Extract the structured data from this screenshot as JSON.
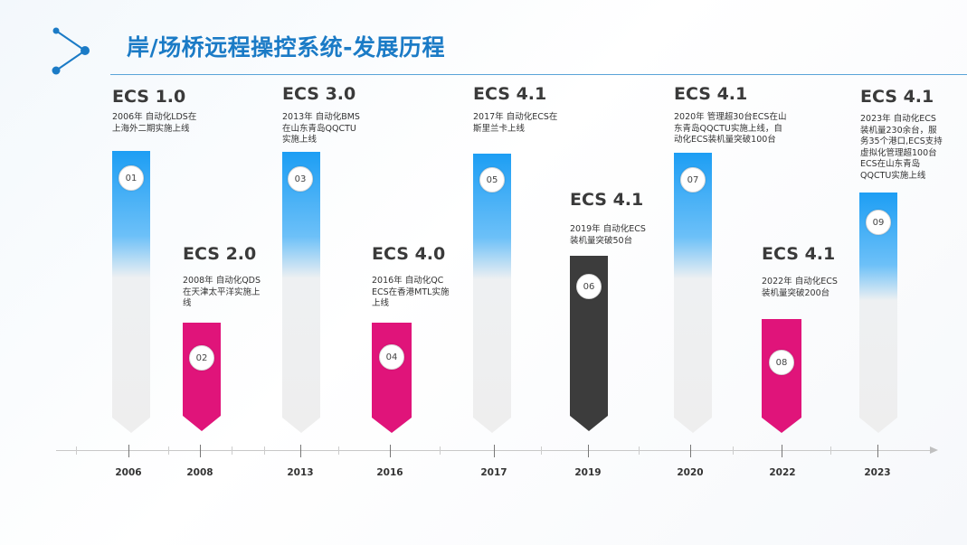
{
  "header": {
    "title": "岸/场桥远程操控系统-发展历程"
  },
  "milestones": [
    {
      "no": "01",
      "version": "ECS 1.0",
      "year": "2006",
      "color": "blue",
      "text": "2006年 自动化LDS在\n上海外二期实施上线"
    },
    {
      "no": "02",
      "version": "ECS 2.0",
      "year": "2008",
      "color": "pink",
      "text": "2008年 自动化QDS\n在天津太平洋实施上\n线"
    },
    {
      "no": "03",
      "version": "ECS 3.0",
      "year": "2013",
      "color": "blue",
      "text": "2013年 自动化BMS\n在山东青岛QQCTU\n实施上线"
    },
    {
      "no": "04",
      "version": "ECS 4.0",
      "year": "2016",
      "color": "pink",
      "text": "2016年 自动化QC\nECS在香港MTL实施\n上线"
    },
    {
      "no": "05",
      "version": "ECS 4.1",
      "year": "2017",
      "color": "blue",
      "text": "2017年 自动化ECS在\n斯里兰卡上线"
    },
    {
      "no": "06",
      "version": "ECS 4.1",
      "year": "2019",
      "color": "dark",
      "text": "2019年 自动化ECS\n装机量突破50台"
    },
    {
      "no": "07",
      "version": "ECS 4.1",
      "year": "2020",
      "color": "blue",
      "text": "2020年 管理超30台ECS在山\n东青岛QQCTU实施上线，自\n动化ECS装机量突破100台"
    },
    {
      "no": "08",
      "version": "ECS 4.1",
      "year": "2022",
      "color": "pink",
      "text": "2022年 自动化ECS\n装机量突破200台"
    },
    {
      "no": "09",
      "version": "ECS 4.1",
      "year": "2023",
      "color": "blue",
      "text": "2023年 自动化ECS\n装机量230余台，服\n务35个港口,ECS支持\n虚拟化管理超100台\nECS在山东青岛\nQQCTU实施上线"
    }
  ],
  "colors": {
    "title": "#1b7bc6",
    "blue": "#1b9ef3",
    "pink": "#e0147a",
    "dark": "#3c3c3c",
    "line": "#5aa4d8"
  }
}
